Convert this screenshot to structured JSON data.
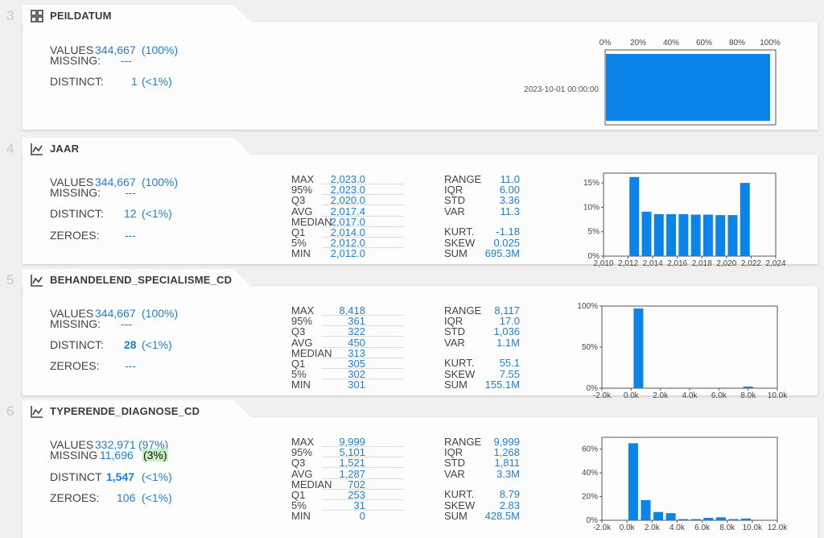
{
  "sections": [
    {
      "index": "3",
      "title": "PEILDATUM",
      "icon": "grid-icon",
      "values_label": "VALUES",
      "values": "344,667",
      "values_pct": "(100%)",
      "missing_label": "MISSING:",
      "missing": "---",
      "distinct_label": "DISTINCT:",
      "distinct": "1",
      "distinct_pct": "(<1%)",
      "chart_axis": [
        "0%",
        "20%",
        "40%",
        "60%",
        "80%",
        "100%"
      ],
      "chart_category": "2023-10-01 00:00:00"
    },
    {
      "index": "4",
      "title": "JAAR",
      "icon": "histogram-icon",
      "values_label": "VALUES",
      "values": "344,667",
      "values_pct": "(100%)",
      "missing_label": "MISSING:",
      "missing": "---",
      "distinct_label": "DISTINCT:",
      "distinct": "12",
      "distinct_pct": "(<1%)",
      "zeroes_label": "ZEROES:",
      "zeroes": "---",
      "quantiles": [
        {
          "label": "MAX",
          "value": "2,023.0"
        },
        {
          "label": "95%",
          "value": "2,023.0"
        },
        {
          "label": "Q3",
          "value": "2,020.0"
        },
        {
          "label": "AVG",
          "value": "2,017.4"
        },
        {
          "label": "MEDIAN",
          "value": "2,017.0"
        },
        {
          "label": "Q1",
          "value": "2,014.0"
        },
        {
          "label": "5%",
          "value": "2,012.0"
        },
        {
          "label": "MIN",
          "value": "2,012.0"
        }
      ],
      "moments": [
        {
          "label": "RANGE",
          "value": "11.0"
        },
        {
          "label": "IQR",
          "value": "6.00"
        },
        {
          "label": "STD",
          "value": "3.36"
        },
        {
          "label": "VAR",
          "value": "11.3"
        },
        {
          "label": "KURT.",
          "value": "-1.18"
        },
        {
          "label": "SKEW",
          "value": "0.025"
        },
        {
          "label": "SUM",
          "value": "695.3M"
        }
      ]
    },
    {
      "index": "5",
      "title": "BEHANDELEND_SPECIALISME_CD",
      "icon": "histogram-icon",
      "values_label": "VALUES",
      "values": "344,667",
      "values_pct": "(100%)",
      "missing_label": "MISSING:",
      "missing": "---",
      "distinct_label": "DISTINCT:",
      "distinct": "28",
      "distinct_pct": "(<1%)",
      "zeroes_label": "ZEROES:",
      "zeroes": "---",
      "quantiles": [
        {
          "label": "MAX",
          "value": "8,418"
        },
        {
          "label": "95%",
          "value": "361"
        },
        {
          "label": "Q3",
          "value": "322"
        },
        {
          "label": "AVG",
          "value": "450"
        },
        {
          "label": "MEDIAN",
          "value": "313"
        },
        {
          "label": "Q1",
          "value": "305"
        },
        {
          "label": "5%",
          "value": "302"
        },
        {
          "label": "MIN",
          "value": "301"
        }
      ],
      "moments": [
        {
          "label": "RANGE",
          "value": "8,117"
        },
        {
          "label": "IQR",
          "value": "17.0"
        },
        {
          "label": "STD",
          "value": "1,036"
        },
        {
          "label": "VAR",
          "value": "1.1M"
        },
        {
          "label": "KURT.",
          "value": "55.1"
        },
        {
          "label": "SKEW",
          "value": "7.55"
        },
        {
          "label": "SUM",
          "value": "155.1M"
        }
      ]
    },
    {
      "index": "6",
      "title": "TYPERENDE_DIAGNOSE_CD",
      "icon": "histogram-icon",
      "values_label": "VALUES",
      "values": "332,971",
      "values_pct": "(97%)",
      "missing_label": "MISSING",
      "missing": "11,696",
      "missing_pct": "(3%)",
      "distinct_label": "DISTINCT",
      "distinct": "1,547",
      "distinct_pct": "(<1%)",
      "zeroes_label": "ZEROES:",
      "zeroes": "106",
      "zeroes_pct": "(<1%)",
      "quantiles": [
        {
          "label": "MAX",
          "value": "9,999"
        },
        {
          "label": "95%",
          "value": "5,101"
        },
        {
          "label": "Q3",
          "value": "1,521"
        },
        {
          "label": "AVG",
          "value": "1,287"
        },
        {
          "label": "MEDIAN",
          "value": "702"
        },
        {
          "label": "Q1",
          "value": "253"
        },
        {
          "label": "5%",
          "value": "31"
        },
        {
          "label": "MIN",
          "value": "0"
        }
      ],
      "moments": [
        {
          "label": "RANGE",
          "value": "9,999"
        },
        {
          "label": "IQR",
          "value": "1,268"
        },
        {
          "label": "STD",
          "value": "1,811"
        },
        {
          "label": "VAR",
          "value": "3.3M"
        },
        {
          "label": "KURT.",
          "value": "8.79"
        },
        {
          "label": "SKEW",
          "value": "2.83"
        },
        {
          "label": "SUM",
          "value": "428.5M"
        }
      ]
    }
  ],
  "colors": {
    "bar": "#0a84e8",
    "value": "#1f7fd0",
    "label": "#444444",
    "index": "#c8c8c8"
  },
  "chart_data": [
    {
      "type": "bar",
      "orientation": "horizontal",
      "categories": [
        "2023-10-01 00:00:00"
      ],
      "values": [
        100
      ],
      "xlim": [
        0,
        100
      ],
      "xticks": [
        "0%",
        "20%",
        "40%",
        "60%",
        "80%",
        "100%"
      ]
    },
    {
      "type": "bar",
      "x": [
        2012.5,
        2013.5,
        2014.5,
        2015.5,
        2016.5,
        2017.5,
        2018.5,
        2019.5,
        2020.5,
        2021.5,
        2022.5
      ],
      "values": [
        16.2,
        9.1,
        8.6,
        8.6,
        8.6,
        8.5,
        8.5,
        8.4,
        8.4,
        15.0,
        0
      ],
      "xlim": [
        2010,
        2024
      ],
      "ylim": [
        0,
        17
      ],
      "xticks": [
        "2,010",
        "2,012",
        "2,014",
        "2,016",
        "2,018",
        "2,020",
        "2,022",
        "2,024"
      ],
      "yticks": [
        "0%",
        "5%",
        "10%",
        "15%"
      ]
    },
    {
      "type": "bar",
      "x": [
        500,
        8000
      ],
      "values": [
        97,
        2
      ],
      "xlim": [
        -2000,
        10000
      ],
      "ylim": [
        0,
        100
      ],
      "xticks": [
        "-2.0k",
        "0.0k",
        "2.0k",
        "4.0k",
        "6.0k",
        "8.0k",
        "10.0k"
      ],
      "yticks": [
        "0%",
        "50%",
        "100%"
      ]
    },
    {
      "type": "bar",
      "x": [
        500,
        1500,
        2500,
        3500,
        4500,
        5500,
        6500,
        7500,
        8500,
        9500
      ],
      "values": [
        65,
        17,
        7,
        6,
        1,
        1,
        2,
        2.5,
        1,
        1.5
      ],
      "xlim": [
        -2000,
        12000
      ],
      "ylim": [
        0,
        70
      ],
      "xticks": [
        "-2.0k",
        "0.0k",
        "2.0k",
        "4.0k",
        "6.0k",
        "8.0k",
        "10.0k",
        "12.0k"
      ],
      "yticks": [
        "0%",
        "20%",
        "40%",
        "60%"
      ]
    }
  ]
}
